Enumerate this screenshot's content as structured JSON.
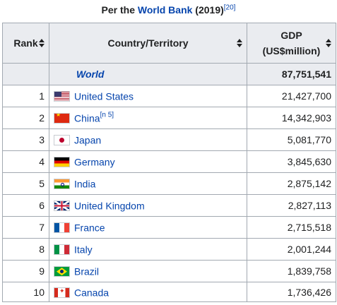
{
  "caption": {
    "prefix": "Per the ",
    "link": "World Bank",
    "suffix": " (2019)",
    "ref": "[20]"
  },
  "headers": {
    "rank": "Rank",
    "country": "Country/Territory",
    "gdp_line1": "GDP",
    "gdp_line2": "(US$million)"
  },
  "world": {
    "label": "World",
    "gdp": "87,751,541"
  },
  "rows": [
    {
      "rank": "1",
      "country": "United States",
      "gdp": "21,427,700",
      "flag": "us-flag-icon"
    },
    {
      "rank": "2",
      "country": "China",
      "note": "[n 5]",
      "gdp": "14,342,903",
      "flag": "china-flag-icon"
    },
    {
      "rank": "3",
      "country": "Japan",
      "gdp": "5,081,770",
      "flag": "japan-flag-icon"
    },
    {
      "rank": "4",
      "country": "Germany",
      "gdp": "3,845,630",
      "flag": "germany-flag-icon"
    },
    {
      "rank": "5",
      "country": "India",
      "gdp": "2,875,142",
      "flag": "india-flag-icon"
    },
    {
      "rank": "6",
      "country": "United Kingdom",
      "gdp": "2,827,113",
      "flag": "uk-flag-icon"
    },
    {
      "rank": "7",
      "country": "France",
      "gdp": "2,715,518",
      "flag": "france-flag-icon"
    },
    {
      "rank": "8",
      "country": "Italy",
      "gdp": "2,001,244",
      "flag": "italy-flag-icon"
    },
    {
      "rank": "9",
      "country": "Brazil",
      "gdp": "1,839,758",
      "flag": "brazil-flag-icon"
    },
    {
      "rank": "10",
      "country": "Canada",
      "gdp": "1,736,426",
      "flag": "canada-flag-icon"
    }
  ],
  "colors": {
    "link": "#0645ad",
    "header_bg": "#eaecf0",
    "border": "#a2a9b1"
  }
}
